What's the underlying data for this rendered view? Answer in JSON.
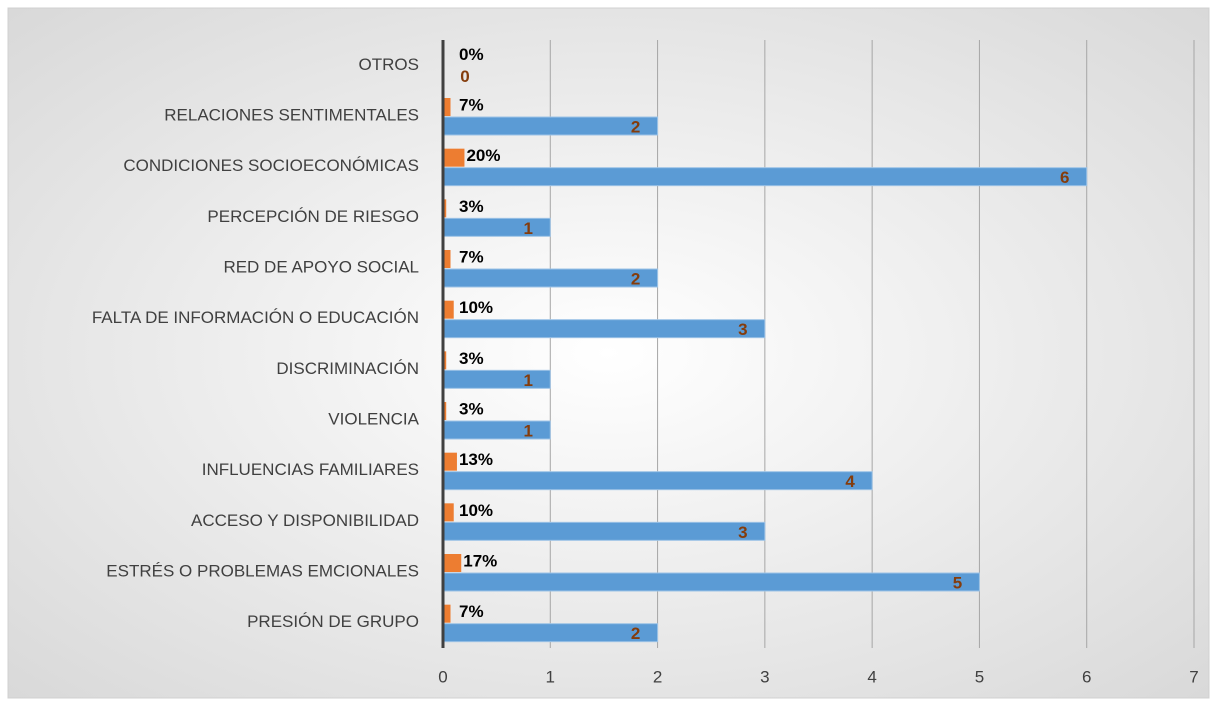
{
  "chart_data": {
    "type": "bar",
    "orientation": "horizontal",
    "categories": [
      "PRESIÓN DE GRUPO",
      "ESTRÉS O PROBLEMAS EMCIONALES",
      "ACCESO Y DISPONIBILIDAD",
      "INFLUENCIAS FAMILIARES",
      "VIOLENCIA",
      "DISCRIMINACIÓN",
      "FALTA DE INFORMACIÓN O EDUCACIÓN",
      "RED DE APOYO SOCIAL",
      "PERCEPCIÓN DE RIESGO",
      "CONDICIONES SOCIOECONÓMICAS",
      "RELACIONES SENTIMENTALES",
      "OTROS"
    ],
    "series": [
      {
        "color": "#ed7d31",
        "values": [
          0.07,
          0.17,
          0.1,
          0.13,
          0.03,
          0.03,
          0.1,
          0.07,
          0.03,
          0.2,
          0.07,
          0
        ],
        "value_labels": [
          "7%",
          "17%",
          "10%",
          "13%",
          "3%",
          "3%",
          "10%",
          "7%",
          "3%",
          "20%",
          "7%",
          "0%"
        ]
      },
      {
        "color": "#5b9bd5",
        "values": [
          2,
          5,
          3,
          4,
          1,
          1,
          3,
          2,
          1,
          6,
          2,
          0
        ]
      }
    ],
    "xlim": [
      0,
      7
    ],
    "xticks": [
      0,
      1,
      2,
      3,
      4,
      5,
      6,
      7
    ],
    "grid": true
  }
}
